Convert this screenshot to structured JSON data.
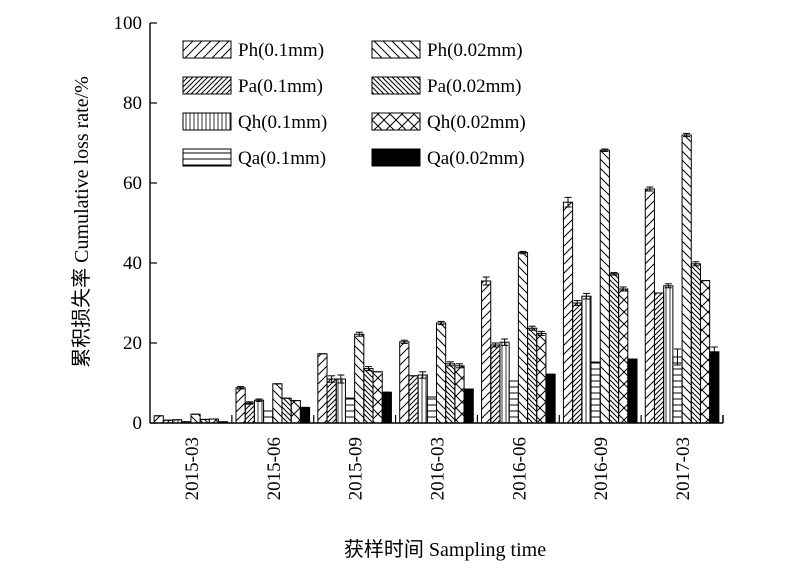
{
  "chart_data": {
    "type": "bar",
    "xlabel": "获样时间 Sampling time",
    "ylabel": "累积损失率 Cumulative loss rate/%",
    "ylim": [
      0,
      100
    ],
    "yticks": [
      0,
      20,
      40,
      60,
      80,
      100
    ],
    "categories": [
      "2015-03",
      "2015-06",
      "2015-09",
      "2016-03",
      "2016-06",
      "2016-09",
      "2017-03"
    ],
    "legend_position": "top-left",
    "series": [
      {
        "name": "Ph(0.1mm)",
        "pattern": "hatch-fwd",
        "values": [
          1.8,
          8.8,
          17.3,
          20.3,
          35.5,
          55.2,
          58.5
        ],
        "errors": [
          0,
          0.3,
          0,
          0.4,
          1.0,
          1.2,
          0.5
        ]
      },
      {
        "name": "Pa(0.1mm)",
        "pattern": "hatch-fwd-dense",
        "values": [
          0.7,
          5.0,
          11.0,
          11.8,
          19.5,
          30.0,
          32.5
        ],
        "errors": [
          0,
          0.3,
          0.8,
          0,
          0.5,
          0.6,
          0
        ]
      },
      {
        "name": "Qh(0.1mm)",
        "pattern": "vertical",
        "values": [
          0.8,
          5.7,
          11.0,
          12.0,
          20.2,
          31.7,
          34.3
        ],
        "errors": [
          0,
          0.3,
          1.0,
          0.8,
          0.8,
          0.7,
          0.5
        ]
      },
      {
        "name": "Qa(0.1mm)",
        "pattern": "horizontal",
        "values": [
          0.3,
          3.0,
          6.2,
          6.5,
          10.5,
          15.2,
          16.5
        ],
        "errors": [
          0,
          0,
          0,
          0,
          0,
          0,
          2.0
        ]
      },
      {
        "name": "Ph(0.02mm)",
        "pattern": "hatch-back",
        "values": [
          2.2,
          9.8,
          22.2,
          25.0,
          42.6,
          68.2,
          72.0
        ],
        "errors": [
          0,
          0,
          0.5,
          0.4,
          0.3,
          0.3,
          0.4
        ]
      },
      {
        "name": "Pa(0.02mm)",
        "pattern": "hatch-back-dense",
        "values": [
          0.9,
          6.2,
          13.6,
          14.8,
          23.7,
          37.3,
          39.8
        ],
        "errors": [
          0,
          0,
          0.5,
          0.5,
          0.5,
          0.3,
          0.5
        ]
      },
      {
        "name": "Qh(0.02mm)",
        "pattern": "cross-diamond",
        "values": [
          1.0,
          5.6,
          12.8,
          14.3,
          22.4,
          33.5,
          35.6
        ],
        "errors": [
          0,
          0,
          0,
          0.5,
          0.5,
          0.5,
          0
        ]
      },
      {
        "name": "Qa(0.02mm)",
        "pattern": "solid",
        "values": [
          0.3,
          3.9,
          7.7,
          8.5,
          12.2,
          16.0,
          17.8
        ],
        "errors": [
          0,
          0,
          0,
          0,
          0,
          0,
          1.2
        ]
      }
    ]
  }
}
